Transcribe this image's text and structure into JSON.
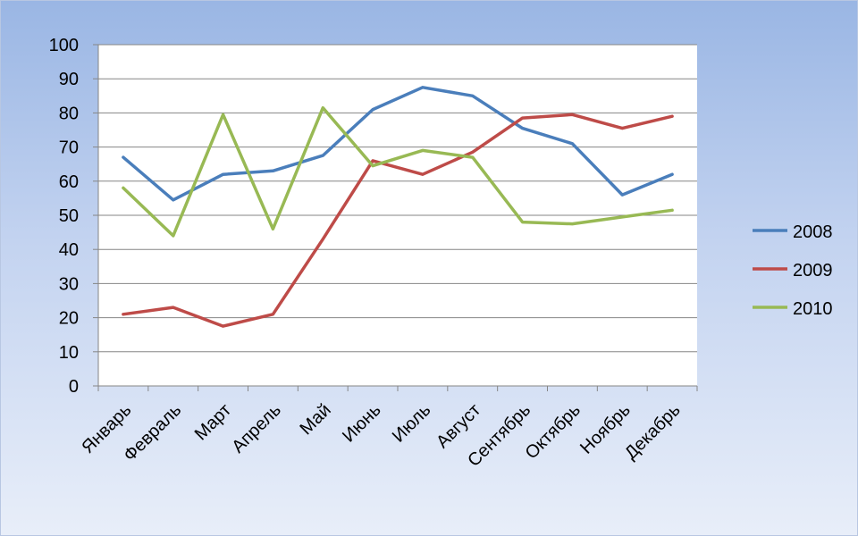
{
  "chart_data": {
    "type": "line",
    "categories": [
      "Январь",
      "Февраль",
      "Март",
      "Апрель",
      "Май",
      "Июнь",
      "Июль",
      "Август",
      "Сентябрь",
      "Октябрь",
      "Ноябрь",
      "Декабрь"
    ],
    "series": [
      {
        "name": "2008",
        "color": "#4a7ebb",
        "values": [
          67,
          54.5,
          62,
          63,
          67.5,
          81,
          87.5,
          85,
          75.5,
          71,
          56,
          62
        ]
      },
      {
        "name": "2009",
        "color": "#be4b48",
        "values": [
          21,
          23,
          17.5,
          21,
          43,
          66,
          62,
          68.5,
          78.5,
          79.5,
          75.5,
          79
        ]
      },
      {
        "name": "2010",
        "color": "#98b954",
        "values": [
          58,
          44,
          79.5,
          46,
          81.5,
          64.5,
          69,
          67,
          48,
          47.5,
          49.5,
          51.5
        ]
      }
    ],
    "yticks": [
      "0",
      "10",
      "20",
      "30",
      "40",
      "50",
      "60",
      "70",
      "80",
      "90",
      "100"
    ],
    "ylim": [
      0,
      100
    ],
    "grid": true,
    "legend_position": "right"
  }
}
